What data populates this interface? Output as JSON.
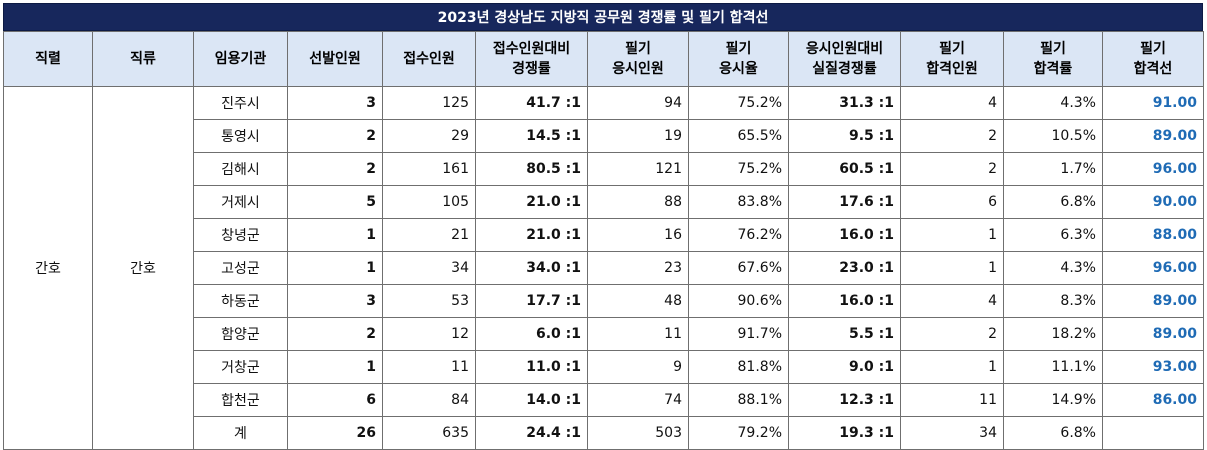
{
  "title": "2023년 경상남도 지방직 공무원 경쟁률 및 필기 합격선",
  "headers": {
    "series": "직렬",
    "category": "직류",
    "agency": "임용기관",
    "hire": "선발인원",
    "apply": "접수인원",
    "ratio_line1": "접수인원대비",
    "ratio_line2": "경쟁률",
    "exam_line1": "필기",
    "exam_line2": "응시인원",
    "examrate_line1": "필기",
    "examrate_line2": "응시율",
    "realratio_line1": "응시인원대비",
    "realratio_line2": "실질경쟁률",
    "pass_line1": "필기",
    "pass_line2": "합격인원",
    "passrate_line1": "필기",
    "passrate_line2": "합격률",
    "cutline_line1": "필기",
    "cutline_line2": "합격선"
  },
  "group": {
    "series": "간호",
    "category": "간호"
  },
  "rows": [
    {
      "agency": "진주시",
      "hire": "3",
      "apply": "125",
      "ratio": "41.7 :1",
      "exam": "94",
      "examrate": "75.2%",
      "realratio": "31.3 :1",
      "pass": "4",
      "passrate": "4.3%",
      "cutline": "91.00"
    },
    {
      "agency": "통영시",
      "hire": "2",
      "apply": "29",
      "ratio": "14.5 :1",
      "exam": "19",
      "examrate": "65.5%",
      "realratio": "9.5 :1",
      "pass": "2",
      "passrate": "10.5%",
      "cutline": "89.00"
    },
    {
      "agency": "김해시",
      "hire": "2",
      "apply": "161",
      "ratio": "80.5 :1",
      "exam": "121",
      "examrate": "75.2%",
      "realratio": "60.5 :1",
      "pass": "2",
      "passrate": "1.7%",
      "cutline": "96.00"
    },
    {
      "agency": "거제시",
      "hire": "5",
      "apply": "105",
      "ratio": "21.0 :1",
      "exam": "88",
      "examrate": "83.8%",
      "realratio": "17.6 :1",
      "pass": "6",
      "passrate": "6.8%",
      "cutline": "90.00"
    },
    {
      "agency": "창녕군",
      "hire": "1",
      "apply": "21",
      "ratio": "21.0 :1",
      "exam": "16",
      "examrate": "76.2%",
      "realratio": "16.0 :1",
      "pass": "1",
      "passrate": "6.3%",
      "cutline": "88.00"
    },
    {
      "agency": "고성군",
      "hire": "1",
      "apply": "34",
      "ratio": "34.0 :1",
      "exam": "23",
      "examrate": "67.6%",
      "realratio": "23.0 :1",
      "pass": "1",
      "passrate": "4.3%",
      "cutline": "96.00"
    },
    {
      "agency": "하동군",
      "hire": "3",
      "apply": "53",
      "ratio": "17.7 :1",
      "exam": "48",
      "examrate": "90.6%",
      "realratio": "16.0 :1",
      "pass": "4",
      "passrate": "8.3%",
      "cutline": "89.00"
    },
    {
      "agency": "함양군",
      "hire": "2",
      "apply": "12",
      "ratio": "6.0 :1",
      "exam": "11",
      "examrate": "91.7%",
      "realratio": "5.5 :1",
      "pass": "2",
      "passrate": "18.2%",
      "cutline": "89.00"
    },
    {
      "agency": "거창군",
      "hire": "1",
      "apply": "11",
      "ratio": "11.0 :1",
      "exam": "9",
      "examrate": "81.8%",
      "realratio": "9.0 :1",
      "pass": "1",
      "passrate": "11.1%",
      "cutline": "93.00"
    },
    {
      "agency": "합천군",
      "hire": "6",
      "apply": "84",
      "ratio": "14.0 :1",
      "exam": "74",
      "examrate": "88.1%",
      "realratio": "12.3 :1",
      "pass": "11",
      "passrate": "14.9%",
      "cutline": "86.00"
    }
  ],
  "total": {
    "agency": "계",
    "hire": "26",
    "apply": "635",
    "ratio": "24.4 :1",
    "exam": "503",
    "examrate": "79.2%",
    "realratio": "19.3 :1",
    "pass": "34",
    "passrate": "6.8%",
    "cutline": ""
  },
  "colors": {
    "title_bg": "#17275c",
    "header_bg": "#dbe6f5",
    "cutline_text": "#1f6bb5"
  }
}
